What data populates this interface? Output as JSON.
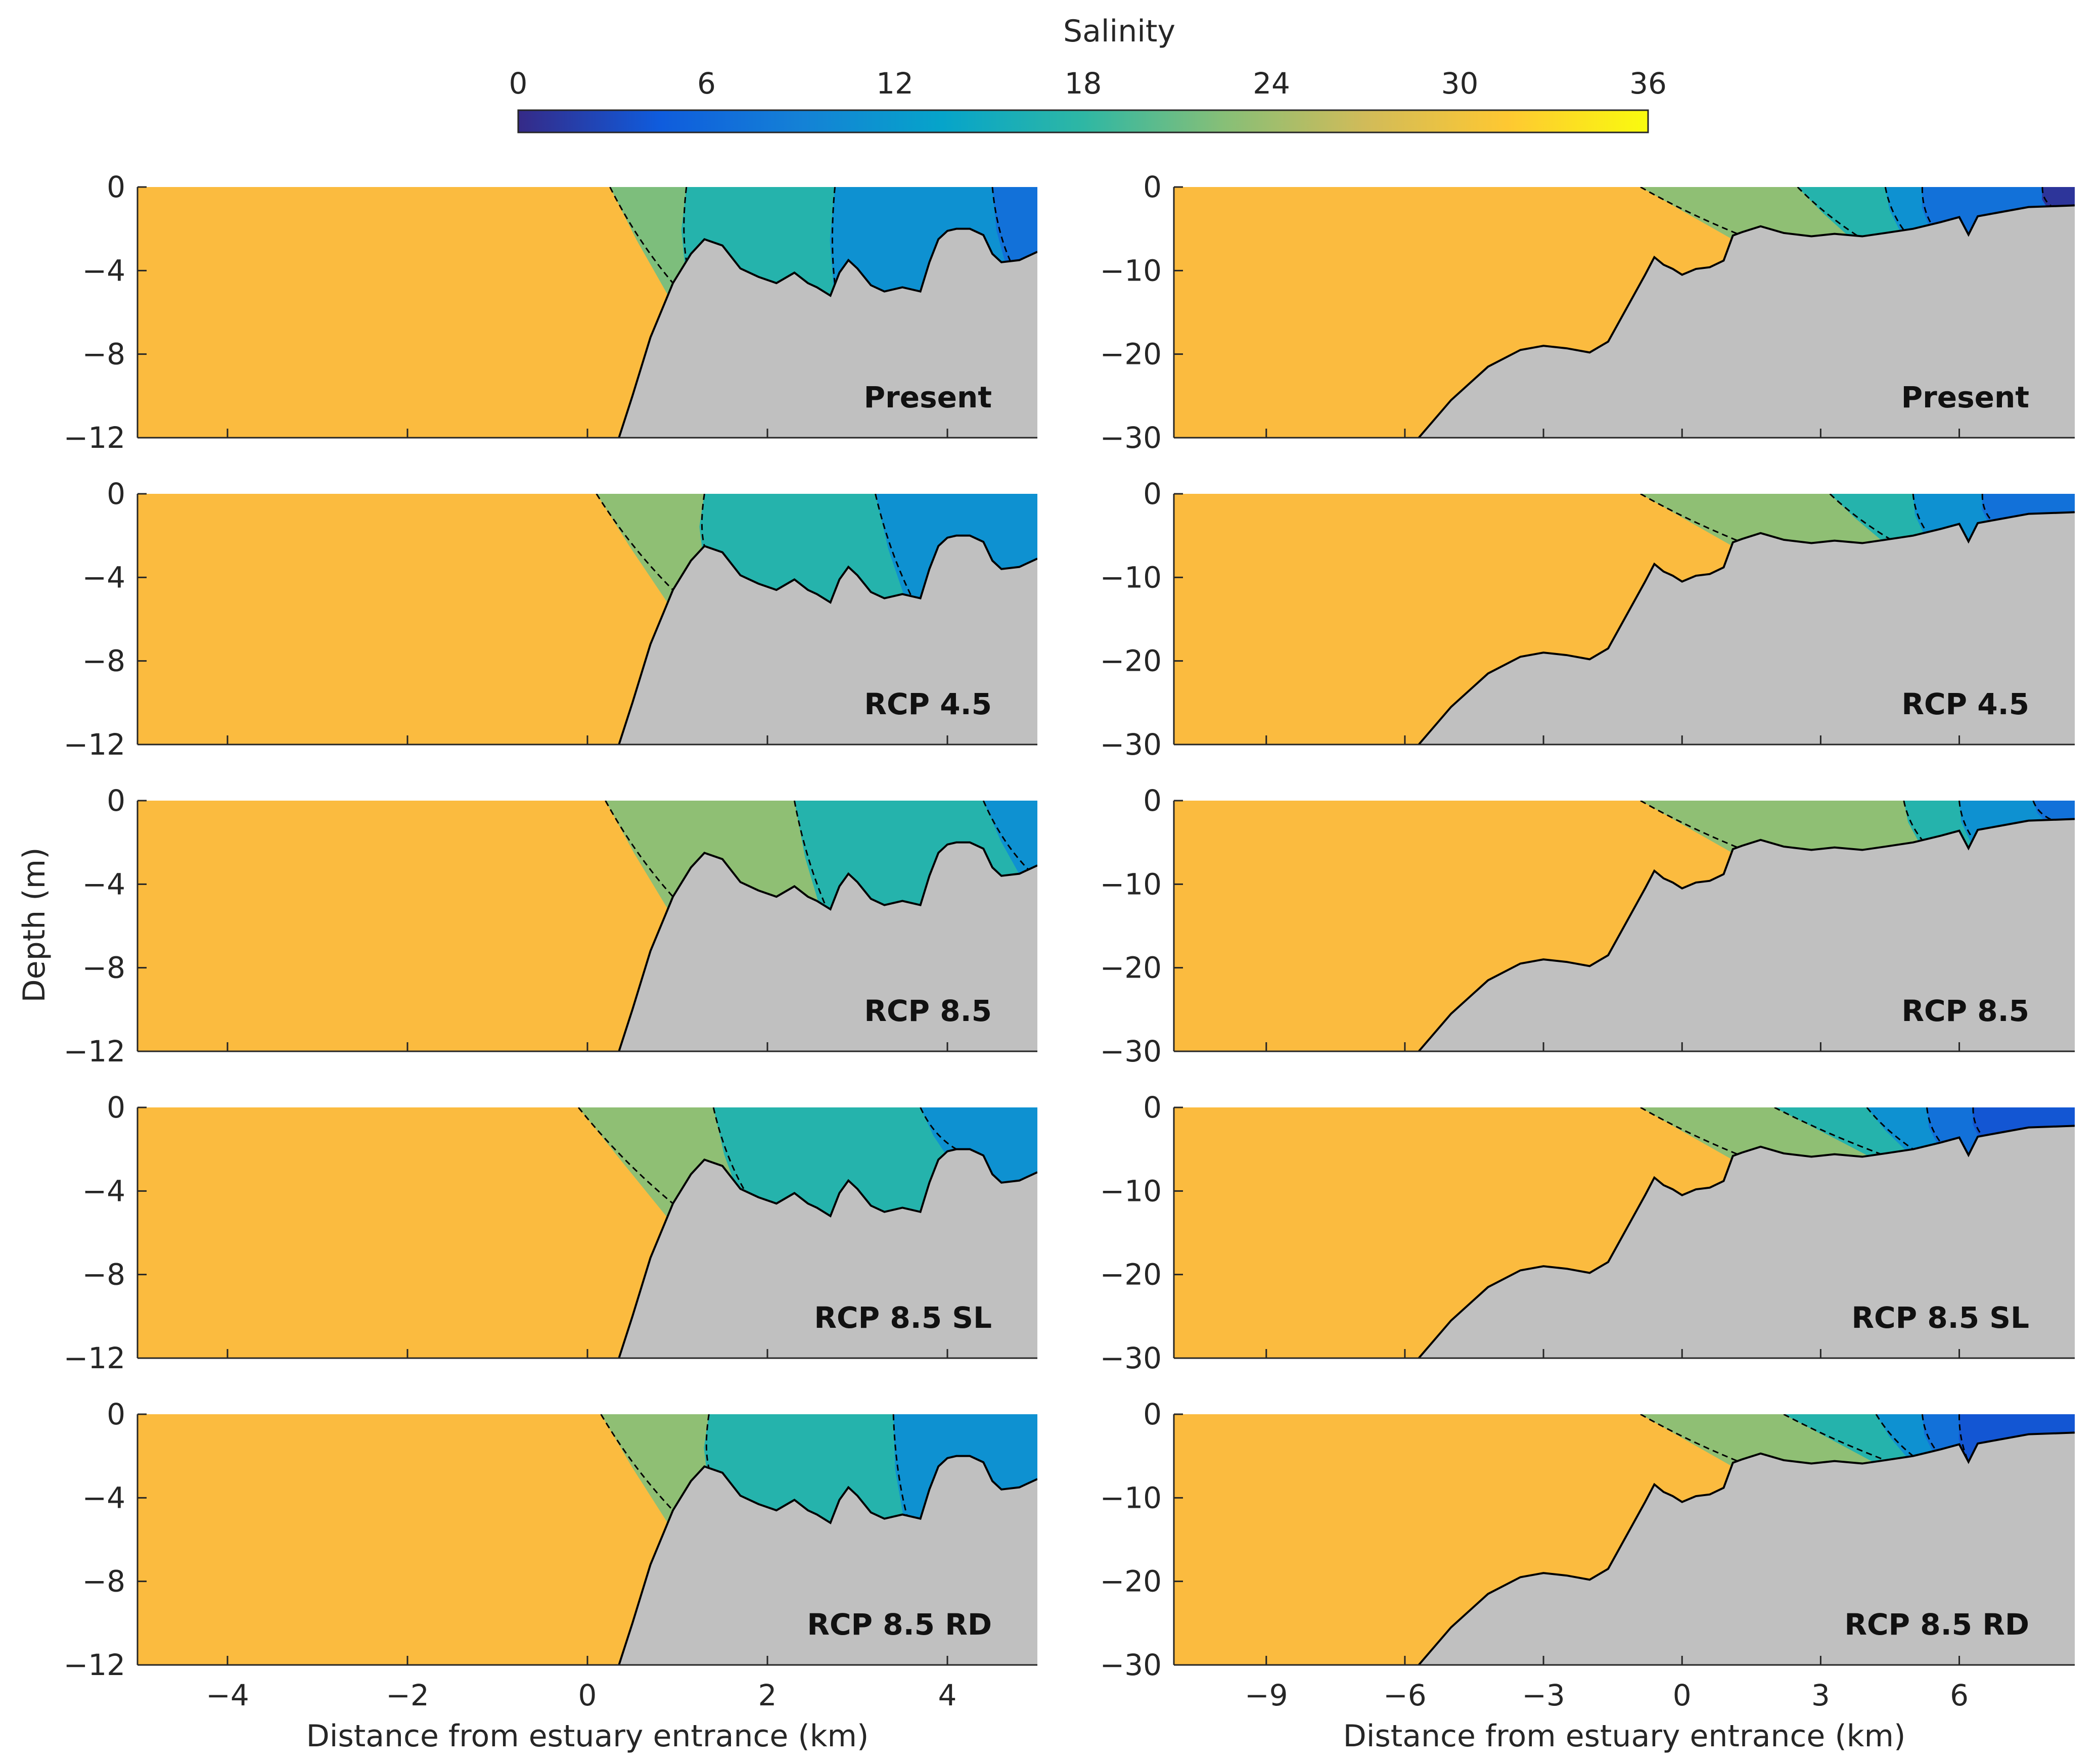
{
  "colorbar": {
    "label": "Salinity",
    "ticks": [
      0,
      6,
      12,
      18,
      24,
      30,
      36
    ],
    "tick_labels": [
      "0",
      "6",
      "12",
      "18",
      "24",
      "30",
      "36"
    ],
    "range": [
      0,
      36
    ],
    "colormap": "parula",
    "colors": [
      "#352a87",
      "#0f5cdd",
      "#1481d6",
      "#06a4ca",
      "#2eb7a4",
      "#87bf77",
      "#d1bb59",
      "#fec832",
      "#f9fb0e"
    ]
  },
  "fill_colors": {
    "seabed": "#c0c0c0",
    "ocean": "#fbbb3f",
    "outline": "#000000",
    "isohaline": "#000000"
  },
  "columns": [
    {
      "xlabel": "Distance from estuary entrance (km)",
      "xlim": [
        -5,
        5
      ],
      "ylim": [
        -12,
        0
      ],
      "xticks": [
        -4,
        -2,
        0,
        2,
        4
      ],
      "xtick_labels": [
        "−4",
        "−2",
        "0",
        "2",
        "4"
      ],
      "yticks": [
        0,
        -4,
        -8,
        -12
      ],
      "ytick_labels": [
        "0",
        "−4",
        "−8",
        "−12"
      ]
    },
    {
      "xlabel": "Distance from estuary entrance (km)",
      "xlim": [
        -11,
        8.5
      ],
      "ylim": [
        -30,
        0
      ],
      "xticks": [
        -9,
        -6,
        -3,
        0,
        3,
        6
      ],
      "xtick_labels": [
        "−9",
        "−6",
        "−3",
        "0",
        "3",
        "6"
      ],
      "yticks": [
        0,
        -10,
        -20,
        -30
      ],
      "ytick_labels": [
        "0",
        "−10",
        "−20",
        "−30"
      ]
    }
  ],
  "ylabel": "Depth (m)",
  "scenarios": [
    "Present",
    "RCP 4.5",
    "RCP 8.5",
    "RCP 8.5 SL",
    "RCP 8.5 RD"
  ],
  "chart_data": {
    "type": "area",
    "description_units": "x in km from estuary entrance, depth in m",
    "bathymetry": [
      {
        "x": [
          -5,
          0.35,
          0.5,
          0.7,
          0.95,
          1.15,
          1.3,
          1.5,
          1.7,
          1.9,
          2.1,
          2.3,
          2.45,
          2.55,
          2.7,
          2.8,
          2.9,
          3.0,
          3.15,
          3.3,
          3.5,
          3.7,
          3.8,
          3.9,
          4.0,
          4.1,
          4.25,
          4.4,
          4.5,
          4.6,
          4.8,
          5.0
        ],
        "depth": [
          -12,
          -12,
          -10,
          -7.2,
          -4.6,
          -3.2,
          -2.5,
          -2.8,
          -3.9,
          -4.3,
          -4.6,
          -4.1,
          -4.6,
          -4.8,
          -5.2,
          -4.1,
          -3.5,
          -3.9,
          -4.7,
          -5.0,
          -4.8,
          -5.0,
          -3.6,
          -2.5,
          -2.1,
          -2.0,
          -2.0,
          -2.3,
          -3.2,
          -3.6,
          -3.5,
          -3.1
        ]
      },
      {
        "x": [
          -11,
          -5.7,
          -5.0,
          -4.2,
          -3.5,
          -3.0,
          -2.5,
          -2.0,
          -1.6,
          -1.2,
          -0.8,
          -0.6,
          -0.4,
          -0.2,
          0.0,
          0.3,
          0.6,
          0.9,
          1.1,
          1.3,
          1.7,
          2.2,
          2.8,
          3.3,
          3.9,
          4.4,
          5.0,
          5.6,
          6.0,
          6.2,
          6.4,
          6.8,
          7.5,
          8.5
        ],
        "depth": [
          -30,
          -30,
          -25.5,
          -21.5,
          -19.5,
          -19.0,
          -19.3,
          -19.8,
          -18.5,
          -14.5,
          -10.5,
          -8.4,
          -9.3,
          -9.8,
          -10.5,
          -9.8,
          -9.6,
          -8.8,
          -5.8,
          -5.4,
          -4.7,
          -5.5,
          -5.9,
          -5.6,
          -5.9,
          -5.5,
          -5.0,
          -4.2,
          -3.6,
          -5.7,
          -3.5,
          -3.1,
          -2.4,
          -2.2
        ]
      }
    ],
    "surface_zones": [
      [
        {
          "name": "Present",
          "bounds": [
            0.25,
            1.1,
            2.75,
            4.5,
            5.0
          ],
          "bottom_x": [
            0.95,
            1.1,
            2.75,
            4.7
          ],
          "salinity": [
            22,
            17,
            11,
            7
          ]
        },
        {
          "name": "RCP 4.5",
          "bounds": [
            0.1,
            1.3,
            3.2,
            5.0
          ],
          "bottom_x": [
            0.95,
            1.3,
            3.6
          ],
          "salinity": [
            23,
            17,
            11
          ]
        },
        {
          "name": "RCP 8.5",
          "bounds": [
            0.2,
            2.3,
            4.4,
            5.0
          ],
          "bottom_x": [
            0.95,
            2.65,
            4.9
          ],
          "salinity": [
            23,
            17,
            11
          ]
        },
        {
          "name": "RCP 8.5 SL",
          "bounds": [
            -0.1,
            1.4,
            3.7,
            5.0
          ],
          "bottom_x": [
            0.95,
            1.75,
            4.1
          ],
          "salinity": [
            23,
            17,
            11
          ]
        },
        {
          "name": "RCP 8.5 RD",
          "bounds": [
            0.15,
            1.35,
            3.4,
            5.0
          ],
          "bottom_x": [
            0.95,
            1.35,
            3.55
          ],
          "salinity": [
            23,
            17,
            11
          ]
        }
      ],
      [
        {
          "name": "Present",
          "bounds": [
            -0.9,
            2.5,
            4.4,
            5.2,
            7.8,
            8.5
          ],
          "bottom_x": [
            1.2,
            3.8,
            4.8,
            5.4,
            8.0
          ],
          "salinity": [
            23,
            17,
            11,
            7,
            1
          ]
        },
        {
          "name": "RCP 4.5",
          "bounds": [
            -0.9,
            3.2,
            5.0,
            6.5,
            8.5
          ],
          "bottom_x": [
            1.2,
            4.5,
            5.3,
            6.7
          ],
          "salinity": [
            23,
            17,
            11,
            7
          ]
        },
        {
          "name": "RCP 8.5",
          "bounds": [
            -0.9,
            4.8,
            6.0,
            7.6,
            8.5
          ],
          "bottom_x": [
            1.2,
            5.2,
            6.3,
            8.0
          ],
          "salinity": [
            23,
            17,
            11,
            7
          ]
        },
        {
          "name": "RCP 8.5 SL",
          "bounds": [
            -0.9,
            2.0,
            4.0,
            5.3,
            6.3,
            8.5
          ],
          "bottom_x": [
            1.2,
            4.3,
            5.0,
            5.6,
            6.5
          ],
          "salinity": [
            23,
            17,
            11,
            7,
            4
          ]
        },
        {
          "name": "RCP 8.5 RD",
          "bounds": [
            -0.9,
            2.2,
            4.2,
            5.2,
            6.0,
            8.5
          ],
          "bottom_x": [
            1.2,
            4.4,
            5.0,
            5.5,
            6.2
          ],
          "salinity": [
            23,
            17,
            11,
            7,
            4
          ]
        }
      ]
    ]
  }
}
